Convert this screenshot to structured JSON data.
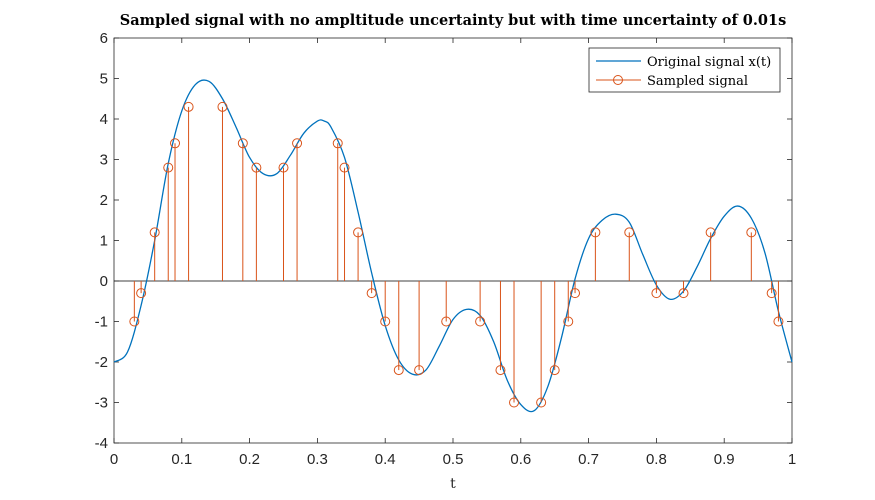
{
  "chart_data": {
    "type": "line",
    "title": "Sampled signal with no ampltitude uncertainty but with time uncertainty of 0.01s",
    "xlabel": "t",
    "ylabel": "",
    "xlim": [
      0,
      1
    ],
    "ylim": [
      -4,
      6
    ],
    "xticks": [
      0,
      0.1,
      0.2,
      0.3,
      0.4,
      0.5,
      0.6,
      0.7,
      0.8,
      0.9,
      1
    ],
    "xtick_labels": [
      "0",
      "0.1",
      "0.2",
      "0.3",
      "0.4",
      "0.5",
      "0.6",
      "0.7",
      "0.8",
      "0.9",
      "1"
    ],
    "yticks": [
      -4,
      -3,
      -2,
      -1,
      0,
      1,
      2,
      3,
      4,
      5,
      6
    ],
    "ytick_labels": [
      "-4",
      "-3",
      "-2",
      "-1",
      "0",
      "1",
      "2",
      "3",
      "4",
      "5",
      "6"
    ],
    "grid": false,
    "legend_position": "top-right",
    "series": [
      {
        "name": "Original signal x(t)",
        "type": "line",
        "color": "#0072BD",
        "x": [
          0,
          0.02,
          0.04,
          0.06,
          0.08,
          0.1,
          0.12,
          0.14,
          0.16,
          0.18,
          0.2,
          0.22,
          0.24,
          0.26,
          0.28,
          0.3,
          0.31,
          0.32,
          0.34,
          0.36,
          0.38,
          0.4,
          0.42,
          0.44,
          0.46,
          0.48,
          0.5,
          0.52,
          0.54,
          0.56,
          0.58,
          0.6,
          0.62,
          0.64,
          0.66,
          0.68,
          0.7,
          0.72,
          0.74,
          0.76,
          0.78,
          0.8,
          0.82,
          0.84,
          0.86,
          0.88,
          0.9,
          0.92,
          0.94,
          0.96,
          0.98,
          1.0
        ],
        "y": [
          -2.0,
          -1.75,
          -0.6,
          1.0,
          2.9,
          4.2,
          4.85,
          4.93,
          4.5,
          3.8,
          3.05,
          2.65,
          2.65,
          3.1,
          3.65,
          3.95,
          3.95,
          3.8,
          3.05,
          1.7,
          0.2,
          -1.1,
          -1.95,
          -2.3,
          -2.2,
          -1.6,
          -0.95,
          -0.7,
          -0.85,
          -1.5,
          -2.45,
          -3.05,
          -3.2,
          -2.6,
          -1.4,
          0.05,
          1.05,
          1.5,
          1.65,
          1.45,
          0.65,
          -0.1,
          -0.45,
          -0.25,
          0.35,
          1.05,
          1.6,
          1.85,
          1.55,
          0.7,
          -0.75,
          -2.0
        ]
      },
      {
        "name": "Sampled signal",
        "type": "stem",
        "color": "#D95319",
        "x": [
          0.03,
          0.04,
          0.06,
          0.08,
          0.09,
          0.11,
          0.16,
          0.19,
          0.21,
          0.25,
          0.27,
          0.33,
          0.34,
          0.36,
          0.38,
          0.4,
          0.42,
          0.45,
          0.49,
          0.54,
          0.57,
          0.59,
          0.63,
          0.65,
          0.67,
          0.68,
          0.71,
          0.76,
          0.8,
          0.84,
          0.88,
          0.94,
          0.97,
          0.98
        ],
        "y": [
          -1.0,
          -0.3,
          1.2,
          2.8,
          3.4,
          4.3,
          4.3,
          3.4,
          2.8,
          2.8,
          3.4,
          3.4,
          2.8,
          1.2,
          -0.3,
          -1.0,
          -2.2,
          -2.2,
          -1.0,
          -1.0,
          -2.2,
          -3.0,
          -3.0,
          -2.2,
          -1.0,
          -0.3,
          1.2,
          1.2,
          -0.3,
          -0.3,
          1.2,
          1.2,
          -0.3,
          -1.0
        ]
      }
    ]
  },
  "legend": {
    "line_label": "Original signal x(t)",
    "stem_label": "Sampled signal"
  }
}
